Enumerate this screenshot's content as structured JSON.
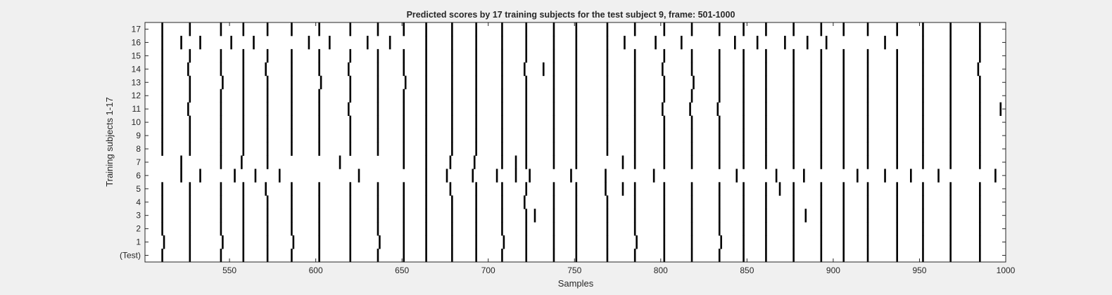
{
  "chart_data": {
    "type": "heatmap",
    "title": "Predicted scores by 17 training subjects for the test subject 9, frame: 501-1000",
    "xlabel": "Samples",
    "ylabel": "Training subjects 1-17",
    "xlim": [
      501,
      1000
    ],
    "x_ticks": [
      550,
      600,
      650,
      700,
      750,
      800,
      850,
      900,
      950,
      1000
    ],
    "y_ticks": [
      "(Test)",
      "1",
      "2",
      "3",
      "4",
      "5",
      "6",
      "7",
      "8",
      "9",
      "10",
      "11",
      "12",
      "13",
      "14",
      "15",
      "16",
      "17"
    ],
    "colormap": "binary: black = predicted event, white = none",
    "grid": false,
    "common_events": [
      511,
      527,
      545,
      558,
      572,
      586,
      602,
      620,
      636,
      651,
      664,
      679,
      693,
      708,
      722,
      738,
      751,
      769,
      785,
      802,
      818,
      834,
      848,
      861,
      877,
      893,
      906,
      920,
      937,
      952,
      968,
      985
    ],
    "rows": [
      {
        "label": "(Test)",
        "events": [
          511,
          527,
          545,
          558,
          572,
          586,
          602,
          620,
          636,
          651,
          664,
          679,
          693,
          708,
          722,
          738,
          751,
          769,
          785,
          802,
          818,
          834,
          848,
          861,
          877,
          893,
          906,
          920,
          937,
          952,
          968,
          985
        ]
      },
      {
        "label": "1",
        "events": [
          512,
          527,
          546,
          558,
          572,
          587,
          602,
          620,
          637,
          651,
          664,
          679,
          693,
          709,
          722,
          738,
          751,
          769,
          786,
          802,
          818,
          835,
          848,
          861,
          877,
          893,
          906,
          920,
          937,
          952,
          968,
          985
        ]
      },
      {
        "label": "2",
        "events": [
          511,
          527,
          545,
          558,
          572,
          586,
          602,
          620,
          636,
          651,
          664,
          679,
          693,
          708,
          722,
          738,
          751,
          769,
          785,
          802,
          818,
          834,
          848,
          861,
          877,
          893,
          906,
          920,
          937,
          952,
          968,
          985
        ]
      },
      {
        "label": "3",
        "events": [
          511,
          527,
          545,
          558,
          572,
          586,
          602,
          620,
          636,
          651,
          664,
          679,
          693,
          708,
          722,
          727,
          738,
          751,
          769,
          785,
          802,
          818,
          834,
          848,
          861,
          877,
          884,
          893,
          906,
          920,
          937,
          952,
          968,
          985
        ]
      },
      {
        "label": "4",
        "events": [
          511,
          527,
          545,
          558,
          572,
          586,
          602,
          620,
          636,
          651,
          664,
          679,
          693,
          708,
          721,
          738,
          751,
          769,
          785,
          802,
          818,
          834,
          848,
          861,
          877,
          893,
          906,
          920,
          937,
          952,
          968,
          985
        ]
      },
      {
        "label": "5",
        "events": [
          511,
          527,
          545,
          558,
          571,
          586,
          602,
          620,
          636,
          651,
          664,
          678,
          693,
          708,
          722,
          738,
          751,
          768,
          778,
          785,
          802,
          818,
          834,
          848,
          861,
          869,
          877,
          893,
          906,
          920,
          937,
          952,
          968,
          985
        ]
      },
      {
        "label": "6",
        "events": [
          522,
          533,
          553,
          565,
          579,
          625,
          664,
          676,
          691,
          705,
          716,
          724,
          748,
          768,
          796,
          844,
          867,
          883,
          914,
          930,
          945,
          961,
          994
        ]
      },
      {
        "label": "7",
        "events": [
          522,
          545,
          557,
          572,
          614,
          651,
          664,
          678,
          692,
          708,
          716,
          722,
          738,
          751,
          778,
          785,
          802,
          818,
          834,
          848,
          861,
          877,
          893,
          906,
          920,
          937,
          952,
          968,
          985
        ]
      },
      {
        "label": "8",
        "events": [
          511,
          527,
          545,
          558,
          572,
          586,
          602,
          620,
          636,
          651,
          664,
          679,
          693,
          708,
          722,
          738,
          751,
          769,
          785,
          802,
          818,
          834,
          848,
          861,
          877,
          893,
          906,
          920,
          937,
          952,
          968,
          985
        ]
      },
      {
        "label": "9",
        "events": [
          511,
          527,
          545,
          558,
          572,
          586,
          602,
          620,
          636,
          651,
          664,
          679,
          693,
          708,
          722,
          738,
          751,
          769,
          785,
          802,
          818,
          834,
          848,
          861,
          877,
          893,
          906,
          920,
          937,
          952,
          968,
          985
        ]
      },
      {
        "label": "10",
        "events": [
          511,
          527,
          545,
          558,
          572,
          586,
          602,
          620,
          636,
          651,
          664,
          679,
          693,
          708,
          722,
          738,
          751,
          769,
          785,
          802,
          818,
          834,
          848,
          861,
          877,
          893,
          906,
          920,
          937,
          952,
          968,
          985
        ]
      },
      {
        "label": "11",
        "events": [
          511,
          526,
          545,
          558,
          572,
          586,
          602,
          619,
          636,
          651,
          664,
          679,
          693,
          708,
          722,
          738,
          751,
          769,
          785,
          801,
          817,
          833,
          848,
          861,
          877,
          893,
          906,
          920,
          937,
          952,
          968,
          985,
          997
        ]
      },
      {
        "label": "12",
        "events": [
          511,
          527,
          545,
          558,
          572,
          586,
          602,
          620,
          636,
          651,
          664,
          679,
          693,
          708,
          722,
          738,
          751,
          769,
          785,
          802,
          818,
          834,
          848,
          861,
          877,
          893,
          906,
          920,
          937,
          952,
          968,
          985
        ]
      },
      {
        "label": "13",
        "events": [
          511,
          527,
          546,
          558,
          572,
          586,
          603,
          620,
          636,
          652,
          664,
          679,
          693,
          708,
          722,
          738,
          751,
          769,
          785,
          802,
          819,
          834,
          848,
          861,
          877,
          893,
          906,
          920,
          937,
          952,
          968,
          985
        ]
      },
      {
        "label": "14",
        "events": [
          511,
          526,
          545,
          558,
          571,
          586,
          602,
          619,
          636,
          651,
          664,
          679,
          693,
          708,
          721,
          732,
          738,
          751,
          769,
          785,
          801,
          818,
          834,
          848,
          861,
          877,
          893,
          906,
          920,
          937,
          952,
          968,
          984
        ]
      },
      {
        "label": "15",
        "events": [
          511,
          527,
          545,
          558,
          572,
          586,
          602,
          620,
          636,
          651,
          664,
          679,
          693,
          708,
          722,
          738,
          751,
          769,
          785,
          802,
          818,
          834,
          848,
          861,
          877,
          893,
          906,
          920,
          937,
          952,
          968,
          985
        ]
      },
      {
        "label": "16",
        "events": [
          511,
          522,
          533,
          551,
          564,
          596,
          608,
          630,
          643,
          664,
          679,
          693,
          708,
          722,
          738,
          751,
          769,
          779,
          797,
          812,
          843,
          856,
          872,
          885,
          896,
          930,
          952,
          968,
          985
        ]
      },
      {
        "label": "17",
        "events": [
          511,
          527,
          545,
          558,
          572,
          586,
          602,
          620,
          636,
          651,
          664,
          679,
          693,
          708,
          722,
          738,
          751,
          769,
          785,
          802,
          818,
          834,
          848,
          861,
          877,
          893,
          906,
          920,
          937,
          952,
          968,
          985
        ]
      }
    ]
  }
}
